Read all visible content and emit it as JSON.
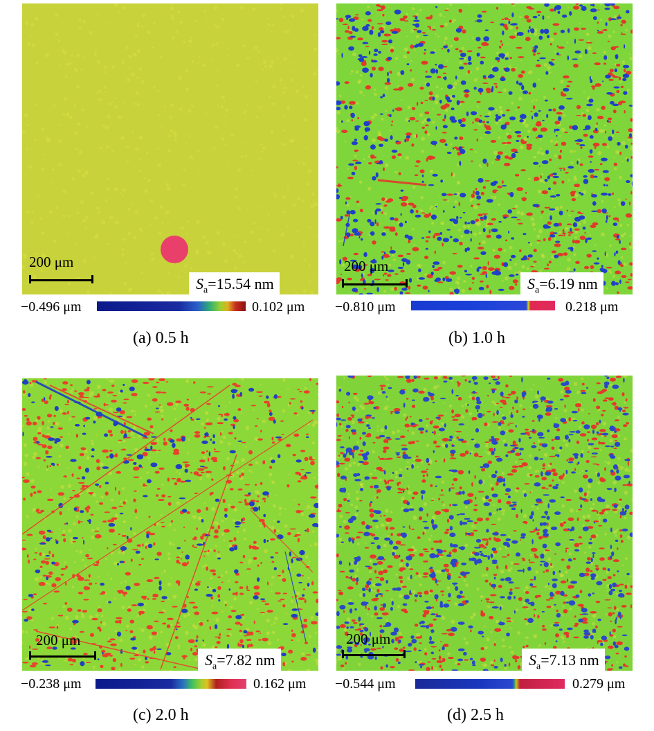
{
  "panels": [
    {
      "scale_bar": "200 μm",
      "sa_symbol": "S",
      "sa_sub": "a",
      "sa_value": "=15.54 nm",
      "cbar_min": "−0.496 μm",
      "cbar_max": "0.102 μm",
      "caption": "(a) 0.5 h",
      "base_color": "#c8d23a",
      "high_color": "#e0551c",
      "low_color": "#1a3aa8"
    },
    {
      "scale_bar": "200 μm",
      "sa_symbol": "S",
      "sa_sub": "a",
      "sa_value": "=6.19 nm",
      "cbar_min": "−0.810 μm",
      "cbar_max": "0.218 μm",
      "caption": "(b) 1.0 h",
      "base_color": "#7ed63a",
      "high_color": "#e03a2a",
      "low_color": "#2040c8"
    },
    {
      "scale_bar": "200 μm",
      "sa_symbol": "S",
      "sa_sub": "a",
      "sa_value": "=7.82 nm",
      "cbar_min": "−0.238 μm",
      "cbar_max": "0.162 μm",
      "caption": "(c) 2.0 h",
      "base_color": "#8cd838",
      "high_color": "#e8402c",
      "low_color": "#2040c0"
    },
    {
      "scale_bar": "200 μm",
      "sa_symbol": "S",
      "sa_sub": "a",
      "sa_value": "=7.13 nm",
      "cbar_min": "−0.544 μm",
      "cbar_max": "0.279 μm",
      "caption": "(d) 2.5 h",
      "base_color": "#80d43a",
      "high_color": "#e23a2a",
      "low_color": "#2a48c8"
    }
  ]
}
